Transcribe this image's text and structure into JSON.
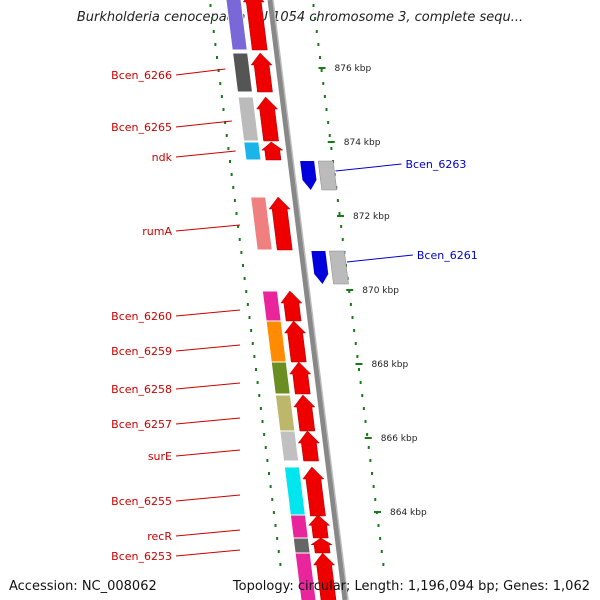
{
  "title": "Burkholderia cenocepacia AU 1054 chromosome 3, complete sequ...",
  "footer": {
    "accession": "Accession: NC_008062",
    "summary": "Topology: circular; Length: 1,196,094 bp; Genes: 1,062"
  },
  "colors": {
    "forward_label": "#cc0000",
    "reverse_label": "#0000cc",
    "tick": "#1a7a1a",
    "forward_arrow": "#ee0000",
    "reverse_arrow": "#0000dd",
    "backbone": "#888888"
  },
  "axis": {
    "ticks_kbp": [
      876,
      874,
      872,
      870,
      868,
      866,
      864
    ],
    "tick_labels": [
      "876 kbp",
      "874 kbp",
      "872 kbp",
      "870 kbp",
      "868 kbp",
      "866 kbp",
      "864 kbp"
    ]
  },
  "forward_genes": [
    {
      "label": "",
      "color": "#7b68d8"
    },
    {
      "label": "Bcen_6266",
      "color": "#555555"
    },
    {
      "label": "Bcen_6265",
      "color": "#bbbbbb"
    },
    {
      "label": "ndk",
      "color": "#18b4ea"
    },
    {
      "label": "rumA",
      "color": "#f08080"
    },
    {
      "label": "Bcen_6260",
      "color": "#e8259a"
    },
    {
      "label": "Bcen_6259",
      "color": "#ff8c00"
    },
    {
      "label": "Bcen_6258",
      "color": "#6b8e23"
    },
    {
      "label": "Bcen_6257",
      "color": "#bdb76b"
    },
    {
      "label": "surE",
      "color": "#c0c0c0"
    },
    {
      "label": "Bcen_6255",
      "color": "#00e5ee"
    },
    {
      "label": "recR",
      "color": "#e8259a"
    },
    {
      "label": "Bcen_6253",
      "color": "#666666"
    },
    {
      "label": "",
      "color": "#e8259a"
    }
  ],
  "reverse_genes": [
    {
      "label": "Bcen_6263",
      "color": "#bbbbbb"
    },
    {
      "label": "Bcen_6261",
      "color": "#bbbbbb"
    }
  ]
}
